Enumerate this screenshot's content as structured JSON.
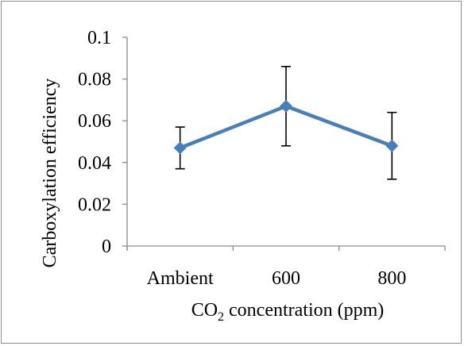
{
  "chart_data": {
    "type": "line",
    "categories": [
      "Ambient",
      "600",
      "800"
    ],
    "series": [
      {
        "values": [
          0.047,
          0.067,
          0.048
        ],
        "error_low": [
          0.037,
          0.048,
          0.032
        ],
        "error_high": [
          0.057,
          0.086,
          0.064
        ],
        "color": "#4a7ebb",
        "marker": "diamond"
      }
    ],
    "ylabel": "Carboxylation efficiency",
    "xlabel": {
      "prefix": "CO",
      "subscript": "2",
      "suffix": " concentration (ppm)"
    },
    "ylim": [
      0,
      0.1
    ],
    "yticks": [
      "0",
      "0.02",
      "0.04",
      "0.06",
      "0.08",
      "0.1"
    ],
    "grid": false,
    "legend": "none"
  }
}
